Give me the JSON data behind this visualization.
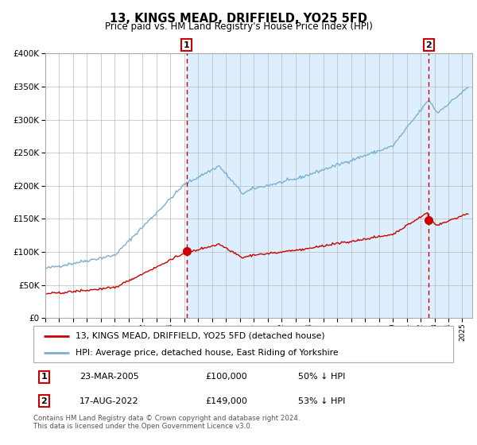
{
  "title": "13, KINGS MEAD, DRIFFIELD, YO25 5FD",
  "subtitle": "Price paid vs. HM Land Registry's House Price Index (HPI)",
  "legend_line1": "13, KINGS MEAD, DRIFFIELD, YO25 5FD (detached house)",
  "legend_line2": "HPI: Average price, detached house, East Riding of Yorkshire",
  "transaction1_date": "23-MAR-2005",
  "transaction1_price": "£100,000",
  "transaction1_hpi": "50% ↓ HPI",
  "transaction2_date": "17-AUG-2022",
  "transaction2_price": "£149,000",
  "transaction2_hpi": "53% ↓ HPI",
  "footnote": "Contains HM Land Registry data © Crown copyright and database right 2024.\nThis data is licensed under the Open Government Licence v3.0.",
  "red_color": "#cc0000",
  "blue_color": "#7ab0d4",
  "bg_fill_color": "#ddeeff",
  "ylim": [
    0,
    400000
  ],
  "yticks": [
    0,
    50000,
    100000,
    150000,
    200000,
    250000,
    300000,
    350000,
    400000
  ],
  "year_start": 1995,
  "year_end": 2025,
  "t1_year": 2005,
  "t1_month": 3,
  "t2_year": 2022,
  "t2_month": 8,
  "t1_price": 100000,
  "t2_price": 149000
}
